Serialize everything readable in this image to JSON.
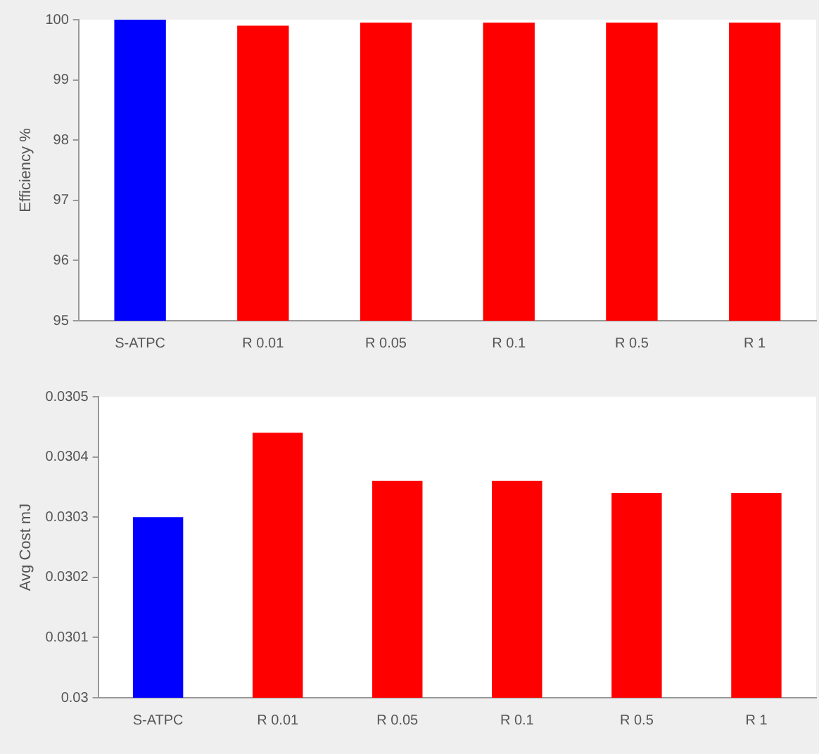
{
  "chart_data": [
    {
      "type": "bar",
      "ylabel": "Efficiency %",
      "categories": [
        "S-ATPC",
        "R 0.01",
        "R 0.05",
        "R 0.1",
        "R 0.5",
        "R 1"
      ],
      "values": [
        100,
        99.9,
        99.95,
        99.95,
        99.95,
        99.95
      ],
      "colors": [
        "#0000ff",
        "#ff0000",
        "#ff0000",
        "#ff0000",
        "#ff0000",
        "#ff0000"
      ],
      "ylim": [
        95,
        100
      ],
      "yticks": [
        95,
        96,
        97,
        98,
        99,
        100
      ],
      "grid": false,
      "legend": false
    },
    {
      "type": "bar",
      "ylabel": "Avg Cost mJ",
      "categories": [
        "S-ATPC",
        "R 0.01",
        "R 0.05",
        "R 0.1",
        "R 0.5",
        "R 1"
      ],
      "values": [
        0.0303,
        0.03044,
        0.03036,
        0.03036,
        0.03034,
        0.03034
      ],
      "colors": [
        "#0000ff",
        "#ff0000",
        "#ff0000",
        "#ff0000",
        "#ff0000",
        "#ff0000"
      ],
      "ylim": [
        0.03,
        0.0305
      ],
      "yticks": [
        {
          "value": 0.03,
          "label": "0.03"
        },
        0.0301,
        0.0302,
        0.0303,
        0.0304,
        0.0305
      ],
      "grid": false,
      "legend": false
    }
  ]
}
